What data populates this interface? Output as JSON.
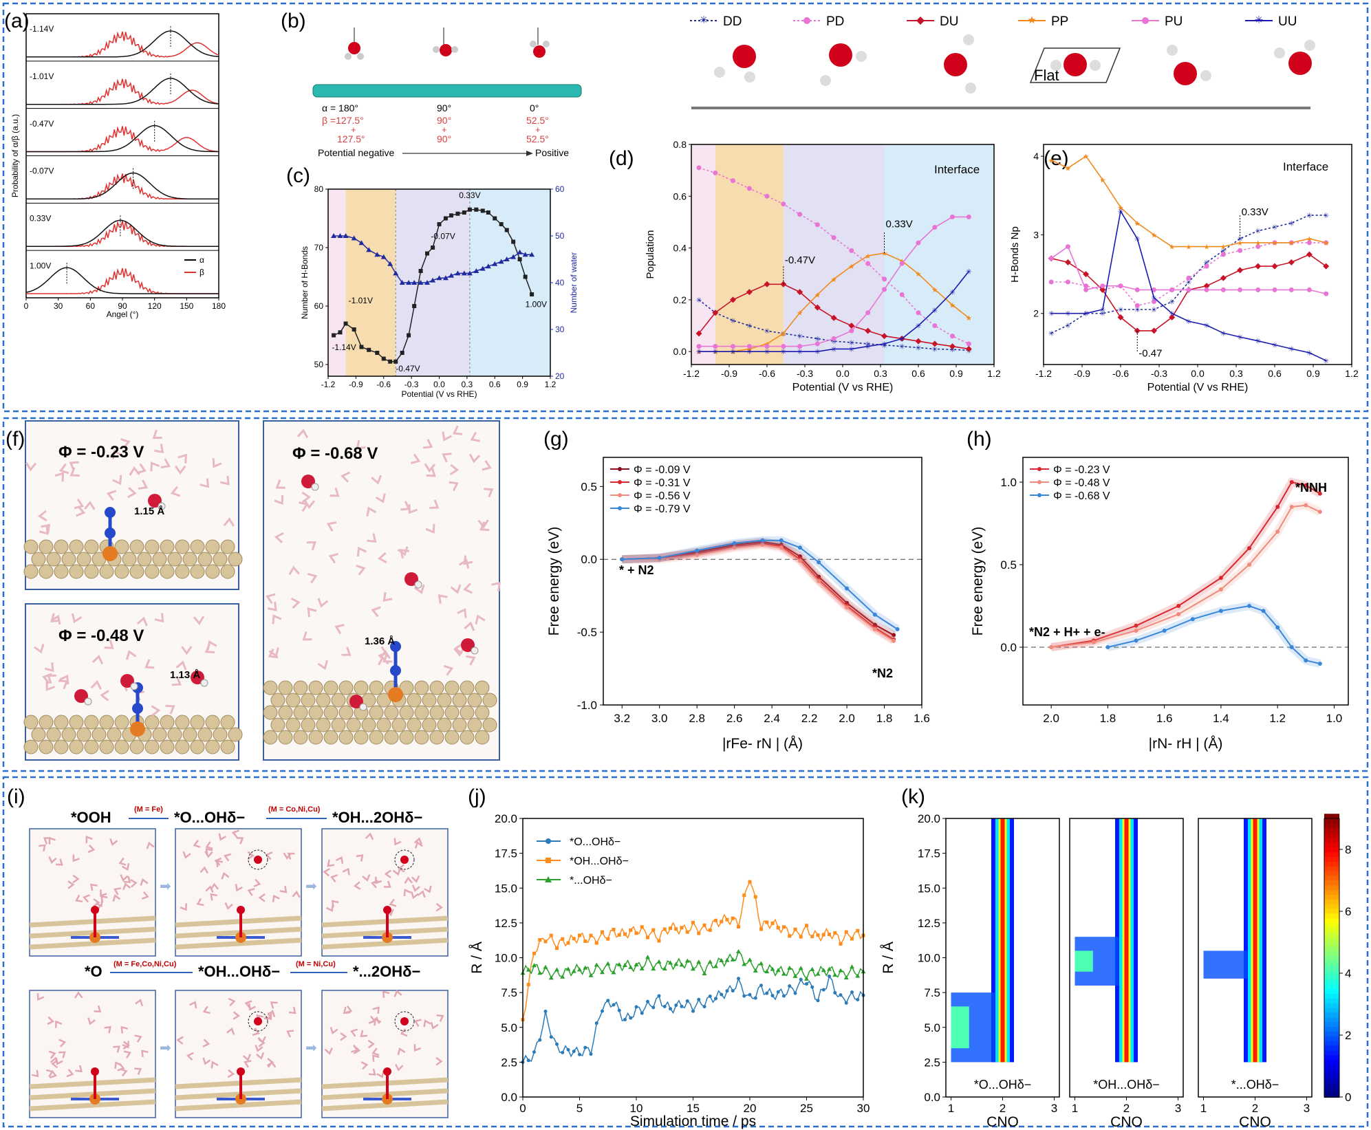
{
  "panel_labels": {
    "a": "(a)",
    "b": "(b)",
    "c": "(c)",
    "d": "(d)",
    "e": "(e)",
    "f": "(f)",
    "g": "(g)",
    "h": "(h)",
    "i": "(i)",
    "j": "(j)",
    "k": "(k)"
  },
  "colors": {
    "frame": "#2a6fcf",
    "red": "#e03030",
    "black": "#111111",
    "navy": "#1f2aa0",
    "pink": "#e874d6",
    "darkred": "#c81428",
    "orange": "#f08a1c",
    "blue": "#1a4fc0",
    "blue_j": "#2b7bb9",
    "orange_j": "#ff8c1a",
    "green_j": "#2ca02c",
    "g1": "#8b0d1a",
    "g2": "#d9262f",
    "g3": "#f08a7c",
    "g4": "#3a86d8"
  },
  "panel_a": {
    "ylabel": "Probability of α/β (a.u.)",
    "xlabel": "Angel (°)",
    "xticks": [
      "0",
      "30",
      "60",
      "90",
      "120",
      "150",
      "180"
    ],
    "rows": [
      "-1.14V",
      "-1.01V",
      "-0.47V",
      "-0.07V",
      "0.33V",
      "1.00V"
    ],
    "legend": {
      "alpha": "α",
      "beta": "β"
    },
    "peak_alpha_deg": [
      135,
      135,
      120,
      100,
      88,
      38
    ]
  },
  "panel_b": {
    "angles": [
      "α = 180°",
      "90°",
      "0°"
    ],
    "beta": [
      "β =127.5°",
      "90°",
      "52.5°"
    ],
    "plus": [
      "+",
      "+",
      "+"
    ],
    "beta2": [
      "127.5°",
      "90°",
      "52.5°"
    ],
    "axis_left": "Potential negative",
    "axis_right": "Positive"
  },
  "legend_de": [
    {
      "key": "DD",
      "label": "DD"
    },
    {
      "key": "PD",
      "label": "PD"
    },
    {
      "key": "DU",
      "label": "DU"
    },
    {
      "key": "PP",
      "label": "PP"
    },
    {
      "key": "PU",
      "label": "PU"
    },
    {
      "key": "UU",
      "label": "UU"
    }
  ],
  "flat_label": "Flat",
  "chart_data": [
    {
      "id": "c",
      "type": "line",
      "xlabel": "Potential (V vs RHE)",
      "ylabel": "Number of H-Bonds",
      "y2label": "Number of water",
      "xlim": [
        -1.2,
        1.2
      ],
      "ylim": [
        48,
        80
      ],
      "y2lim": [
        20,
        60
      ],
      "xticks": [
        "-1.2",
        "-0.9",
        "-0.6",
        "-0.3",
        "0.0",
        "0.3",
        "0.6",
        "0.9",
        "1.2"
      ],
      "yticks": [
        "50",
        "60",
        "70",
        "80"
      ],
      "y2ticks": [
        "20",
        "30",
        "40",
        "50",
        "60"
      ],
      "series": [
        {
          "name": "",
          "axis": "left",
          "x": [
            -1.14,
            -1.07,
            -1.01,
            -0.92,
            -0.84,
            -0.76,
            -0.67,
            -0.6,
            -0.53,
            -0.47,
            -0.4,
            -0.33,
            -0.27,
            -0.2,
            -0.13,
            -0.07,
            0.0,
            0.07,
            0.13,
            0.2,
            0.27,
            0.33,
            0.4,
            0.47,
            0.53,
            0.6,
            0.67,
            0.73,
            0.8,
            0.87,
            0.93,
            1.0
          ],
          "values": [
            55,
            55.5,
            57,
            56,
            53,
            52.5,
            52,
            51,
            50.5,
            50.5,
            52,
            55,
            60,
            66,
            69,
            70,
            74,
            75,
            75.5,
            75.8,
            76,
            76.5,
            76.5,
            76.3,
            76,
            75,
            74,
            73,
            71,
            68,
            65,
            62
          ]
        },
        {
          "name": "",
          "axis": "right",
          "x": [
            -1.14,
            -1.07,
            -1.01,
            -0.92,
            -0.84,
            -0.76,
            -0.67,
            -0.6,
            -0.53,
            -0.47,
            -0.4,
            -0.33,
            -0.27,
            -0.2,
            -0.13,
            -0.07,
            0.0,
            0.07,
            0.13,
            0.2,
            0.27,
            0.33,
            0.4,
            0.47,
            0.53,
            0.6,
            0.67,
            0.73,
            0.8,
            0.87,
            0.93,
            1.0
          ],
          "values": [
            50,
            50,
            50,
            49.5,
            48.5,
            47,
            46,
            45.5,
            44,
            42,
            40,
            40,
            40,
            40,
            40,
            40.5,
            41,
            41,
            41.5,
            42,
            42,
            42,
            42.5,
            43,
            43.5,
            44,
            44.5,
            45,
            45.5,
            46.5,
            46,
            46
          ]
        }
      ],
      "annotations": [
        "0.33V",
        "-1.01V",
        "-1.14V",
        "-0.47V",
        "-0.07V",
        "1.00V"
      ]
    },
    {
      "id": "d",
      "type": "line",
      "xlabel": "Potential (V vs RHE)",
      "ylabel": "Population",
      "xlim": [
        -1.2,
        1.2
      ],
      "ylim": [
        -0.05,
        0.8
      ],
      "xticks": [
        "-1.2",
        "-0.9",
        "-0.6",
        "-0.3",
        "0.0",
        "0.3",
        "0.6",
        "0.9",
        "1.2"
      ],
      "yticks": [
        "0.0",
        "0.2",
        "0.4",
        "0.6",
        "0.8"
      ],
      "x": [
        -1.14,
        -1.01,
        -0.87,
        -0.74,
        -0.6,
        -0.47,
        -0.34,
        -0.2,
        -0.07,
        0.07,
        0.2,
        0.33,
        0.47,
        0.6,
        0.73,
        0.87,
        1.0
      ],
      "series": [
        {
          "name": "DD",
          "values": [
            0.2,
            0.15,
            0.12,
            0.1,
            0.08,
            0.07,
            0.06,
            0.05,
            0.04,
            0.035,
            0.03,
            0.025,
            0.02,
            0.015,
            0.01,
            0.008,
            0.005
          ]
        },
        {
          "name": "PD",
          "values": [
            0.71,
            0.69,
            0.66,
            0.63,
            0.6,
            0.57,
            0.53,
            0.49,
            0.44,
            0.39,
            0.34,
            0.28,
            0.22,
            0.15,
            0.1,
            0.06,
            0.03
          ]
        },
        {
          "name": "DU",
          "values": [
            0.07,
            0.15,
            0.2,
            0.23,
            0.26,
            0.26,
            0.23,
            0.17,
            0.13,
            0.1,
            0.08,
            0.06,
            0.05,
            0.04,
            0.03,
            0.02,
            0.01
          ]
        },
        {
          "name": "PP",
          "values": [
            0.0,
            0.0,
            0.0,
            0.01,
            0.03,
            0.07,
            0.15,
            0.22,
            0.28,
            0.33,
            0.37,
            0.38,
            0.35,
            0.3,
            0.24,
            0.18,
            0.13
          ]
        },
        {
          "name": "PU",
          "values": [
            0.02,
            0.02,
            0.02,
            0.02,
            0.02,
            0.02,
            0.02,
            0.03,
            0.05,
            0.08,
            0.15,
            0.24,
            0.34,
            0.42,
            0.48,
            0.52,
            0.52
          ]
        },
        {
          "name": "UU",
          "values": [
            0.0,
            0.0,
            0.0,
            0.0,
            0.0,
            0.0,
            0.0,
            0.0,
            0.01,
            0.01,
            0.02,
            0.03,
            0.05,
            0.1,
            0.16,
            0.23,
            0.31
          ]
        }
      ],
      "annotations": [
        "Interface",
        "-0.47V",
        "0.33V"
      ]
    },
    {
      "id": "e",
      "type": "line",
      "xlabel": "Potential (V vs RHE)",
      "ylabel": "H-Bonds Np",
      "xlim": [
        -1.2,
        1.2
      ],
      "ylim": [
        1.35,
        4.15
      ],
      "xticks": [
        "-1.2",
        "-0.9",
        "-0.6",
        "-0.3",
        "0.0",
        "0.3",
        "0.6",
        "0.9",
        "1.2"
      ],
      "yticks": [
        "2",
        "3",
        "4"
      ],
      "x": [
        -1.14,
        -1.01,
        -0.87,
        -0.74,
        -0.6,
        -0.47,
        -0.34,
        -0.2,
        -0.07,
        0.07,
        0.2,
        0.33,
        0.47,
        0.6,
        0.73,
        0.87,
        1.0
      ],
      "series": [
        {
          "name": "DD",
          "values": [
            1.75,
            1.85,
            2.0,
            2.0,
            2.05,
            2.05,
            2.05,
            2.15,
            2.4,
            2.65,
            2.8,
            2.95,
            3.05,
            3.1,
            3.15,
            3.25,
            3.25
          ]
        },
        {
          "name": "PD",
          "values": [
            2.4,
            2.4,
            2.35,
            2.3,
            2.35,
            2.1,
            2.15,
            2.3,
            2.45,
            2.6,
            2.75,
            2.8,
            2.85,
            2.9,
            2.9,
            2.9,
            2.9
          ]
        },
        {
          "name": "DU",
          "values": [
            2.7,
            2.65,
            2.5,
            2.3,
            1.95,
            1.78,
            1.78,
            1.95,
            2.3,
            2.35,
            2.45,
            2.55,
            2.6,
            2.6,
            2.65,
            2.75,
            2.6
          ]
        },
        {
          "name": "PP",
          "values": [
            3.95,
            3.85,
            4.0,
            3.7,
            3.35,
            3.15,
            3.0,
            2.85,
            2.85,
            2.85,
            2.85,
            2.9,
            2.9,
            2.9,
            2.9,
            2.95,
            2.9
          ]
        },
        {
          "name": "PU",
          "values": [
            2.7,
            2.85,
            2.3,
            2.35,
            2.35,
            2.3,
            2.3,
            2.3,
            2.3,
            2.3,
            2.3,
            2.3,
            2.3,
            2.3,
            2.3,
            2.3,
            2.25
          ]
        },
        {
          "name": "UU",
          "values": [
            2.0,
            2.0,
            2.0,
            2.05,
            3.3,
            2.95,
            2.2,
            2.0,
            1.9,
            1.85,
            1.75,
            1.7,
            1.65,
            1.6,
            1.55,
            1.5,
            1.4
          ]
        }
      ],
      "annotations": [
        "Interface",
        "0.33V",
        "-0.47"
      ]
    },
    {
      "id": "g",
      "type": "line",
      "xlabel": "|rFe- rN | (Å)",
      "ylabel": "Free energy (eV)",
      "xlim": [
        3.3,
        1.6
      ],
      "ylim": [
        -1.0,
        0.7
      ],
      "xticks": [
        "3.2",
        "3.0",
        "2.8",
        "2.6",
        "2.4",
        "2.2",
        "2.0",
        "1.8",
        "1.6"
      ],
      "yticks": [
        "-1.0",
        "-0.5",
        "0.0",
        "0.5"
      ],
      "series": [
        {
          "name": "Φ = -0.09 V",
          "x": [
            3.2,
            3.0,
            2.8,
            2.6,
            2.45,
            2.35,
            2.25,
            2.15,
            2.0,
            1.85,
            1.75
          ],
          "values": [
            0.0,
            0.01,
            0.05,
            0.1,
            0.12,
            0.1,
            0.02,
            -0.12,
            -0.3,
            -0.45,
            -0.52
          ]
        },
        {
          "name": "Φ = -0.31 V",
          "x": [
            3.2,
            3.0,
            2.8,
            2.6,
            2.45,
            2.35,
            2.25,
            2.15,
            2.0,
            1.85,
            1.75
          ],
          "values": [
            0.0,
            0.01,
            0.04,
            0.09,
            0.11,
            0.09,
            0.0,
            -0.14,
            -0.32,
            -0.47,
            -0.55
          ]
        },
        {
          "name": "Φ = -0.56 V",
          "x": [
            3.2,
            3.0,
            2.8,
            2.6,
            2.45,
            2.35,
            2.25,
            2.15,
            2.0,
            1.85,
            1.75
          ],
          "values": [
            0.0,
            0.0,
            0.03,
            0.08,
            0.1,
            0.08,
            -0.01,
            -0.15,
            -0.33,
            -0.48,
            -0.56
          ]
        },
        {
          "name": "Φ = -0.79 V",
          "x": [
            3.2,
            3.0,
            2.8,
            2.6,
            2.45,
            2.35,
            2.25,
            2.15,
            2.0,
            1.85,
            1.73
          ],
          "values": [
            0.0,
            0.01,
            0.06,
            0.11,
            0.13,
            0.13,
            0.08,
            -0.02,
            -0.2,
            -0.38,
            -0.48
          ]
        }
      ],
      "annotations": [
        "* + N2",
        "*N2"
      ]
    },
    {
      "id": "h",
      "type": "line",
      "xlabel": "|rN- rH | (Å)",
      "ylabel": "Free energy (eV)",
      "xlim": [
        2.1,
        0.95
      ],
      "ylim": [
        -0.35,
        1.15
      ],
      "xticks": [
        "2.0",
        "1.8",
        "1.6",
        "1.4",
        "1.2",
        "1.0"
      ],
      "yticks": [
        "0.0",
        "0.5",
        "1.0"
      ],
      "series": [
        {
          "name": "Φ = -0.23 V",
          "x": [
            2.0,
            1.85,
            1.7,
            1.55,
            1.4,
            1.3,
            1.2,
            1.15,
            1.1,
            1.05
          ],
          "values": [
            0.0,
            0.04,
            0.13,
            0.25,
            0.42,
            0.6,
            0.85,
            1.0,
            0.98,
            0.93
          ]
        },
        {
          "name": "Φ = -0.48 V",
          "x": [
            2.0,
            1.85,
            1.7,
            1.55,
            1.4,
            1.3,
            1.2,
            1.15,
            1.1,
            1.05
          ],
          "values": [
            0.0,
            0.03,
            0.1,
            0.2,
            0.35,
            0.5,
            0.7,
            0.85,
            0.86,
            0.82
          ]
        },
        {
          "name": "Φ = -0.68 V",
          "x": [
            1.8,
            1.7,
            1.6,
            1.5,
            1.4,
            1.3,
            1.25,
            1.2,
            1.15,
            1.1,
            1.05
          ],
          "values": [
            0.0,
            0.04,
            0.1,
            0.17,
            0.22,
            0.25,
            0.22,
            0.12,
            0.0,
            -0.08,
            -0.1
          ]
        }
      ],
      "annotations": [
        "*NNH",
        "*N2 + H+ + e-"
      ]
    },
    {
      "id": "j",
      "type": "line",
      "xlabel": "Simulation time / ps",
      "ylabel": "R / Å",
      "xlim": [
        0,
        30
      ],
      "ylim": [
        0,
        20
      ],
      "xticks": [
        "0",
        "5",
        "10",
        "15",
        "20",
        "25",
        "30"
      ],
      "yticks": [
        "0.0",
        "2.5",
        "5.0",
        "7.5",
        "10.0",
        "12.5",
        "15.0",
        "17.5",
        "20.0"
      ],
      "x": [
        0,
        1,
        2,
        3,
        4,
        5,
        6,
        7,
        8,
        9,
        10,
        11,
        12,
        13,
        14,
        15,
        16,
        17,
        18,
        19,
        20,
        21,
        22,
        23,
        24,
        25,
        26,
        27,
        28,
        29,
        30
      ],
      "series": [
        {
          "name": "*O...OHδ−",
          "values": [
            2.5,
            3.0,
            5.8,
            3.5,
            3.3,
            3.2,
            3.4,
            6.5,
            6.8,
            5.5,
            6.2,
            6.5,
            7.0,
            6.3,
            6.7,
            6.5,
            6.8,
            7.2,
            7.5,
            8.2,
            7.0,
            7.8,
            7.3,
            7.5,
            7.8,
            8.4,
            7.0,
            8.5,
            7.0,
            7.2,
            7.3
          ]
        },
        {
          "name": "*OH...OHδ−",
          "values": [
            5.5,
            10.5,
            11.5,
            11.0,
            11.2,
            11.5,
            11.3,
            11.5,
            11.8,
            11.7,
            12.0,
            11.8,
            11.5,
            12.2,
            12.0,
            12.2,
            12.0,
            12.5,
            12.8,
            12.5,
            15.8,
            12.3,
            12.5,
            12.0,
            11.7,
            12.0,
            11.5,
            11.8,
            11.3,
            11.7,
            11.6
          ]
        },
        {
          "name": "*...OHδ−",
          "values": [
            9.0,
            9.3,
            9.0,
            8.8,
            9.0,
            9.2,
            9.0,
            9.3,
            9.2,
            9.5,
            9.3,
            9.7,
            9.4,
            9.5,
            9.6,
            9.5,
            9.2,
            9.6,
            9.8,
            10.2,
            9.5,
            9.3,
            9.1,
            9.0,
            9.0,
            8.8,
            9.0,
            9.1,
            8.8,
            9.0,
            9.0
          ]
        }
      ]
    },
    {
      "id": "k",
      "type": "heatmap",
      "xlabel": "CNO",
      "ylabel": "R / Å",
      "xlim": [
        0.9,
        3.1
      ],
      "ylim": [
        0,
        20
      ],
      "xticks": [
        "1",
        "2",
        "3"
      ],
      "yticks": [
        "0.0",
        "2.5",
        "5.0",
        "7.5",
        "10.0",
        "12.5",
        "15.0",
        "17.5",
        "20.0"
      ],
      "subplots": [
        "*O...OHδ−",
        "*OH...OHδ−",
        "*...OHδ−"
      ],
      "colorbar_ticks": [
        "0",
        "2",
        "4",
        "6",
        "8"
      ],
      "colorbar_range": [
        0,
        9
      ]
    }
  ],
  "panel_f": {
    "phi1": "Φ = -0.23 V",
    "phi2": "Φ = -0.48 V",
    "phi3": "Φ = -0.68 V",
    "d1": "1.15 Å",
    "d2": "1.13 Å",
    "d3": "1.36 Å"
  },
  "panel_i": {
    "s_ooh": "*OOH",
    "m_fe": "(M = Fe)",
    "s_o_oh": "*O...OHδ−",
    "m_conicu": "(M = Co,Ni,Cu)",
    "s_oh_2oh": "*OH...2OHδ−",
    "s_o": "*O",
    "m_all": "(M = Fe,Co,Ni,Cu)",
    "s_oh_oh": "*OH...OHδ−",
    "m_nicu": "(M = Ni,Cu)",
    "s_2oh": "*...2OHδ−"
  }
}
